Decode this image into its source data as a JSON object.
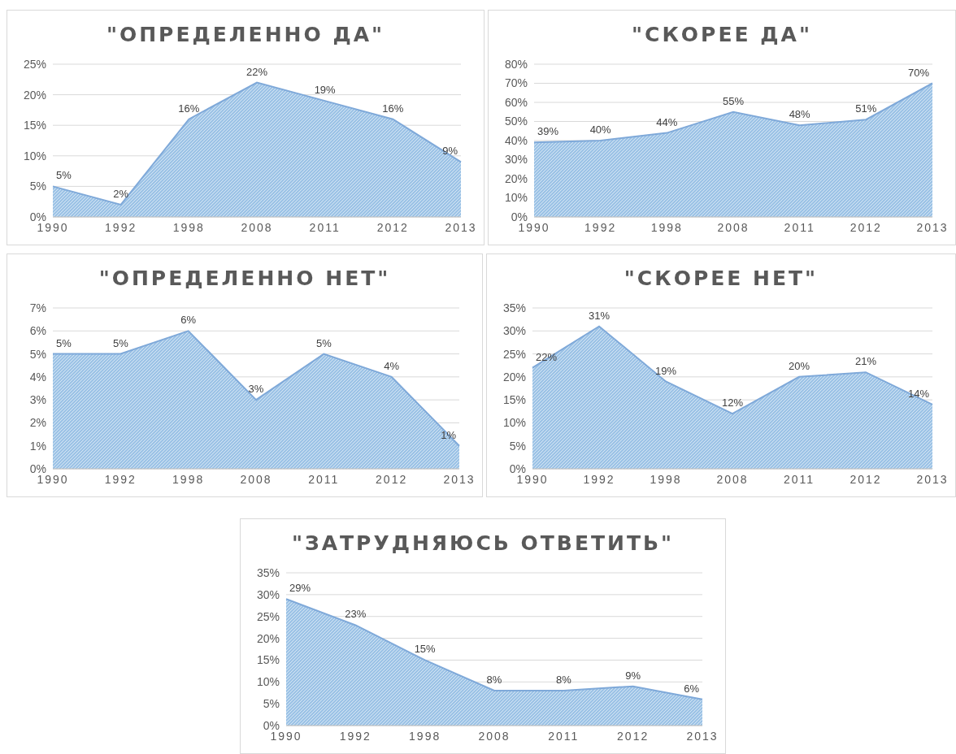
{
  "chart_data": [
    {
      "type": "area",
      "title": "\"ОПРЕДЕЛЕННО ДА\"",
      "categories": [
        "1990",
        "1992",
        "1998",
        "2008",
        "2011",
        "2012",
        "2013"
      ],
      "values": [
        5,
        2,
        16,
        22,
        19,
        16,
        9
      ],
      "value_labels": [
        "5%",
        "2%",
        "16%",
        "22%",
        "19%",
        "16%",
        "9%"
      ],
      "color": "#9dc3e6",
      "ylim": [
        0,
        25
      ],
      "yticks": [
        {
          "value": 0,
          "label": "0%"
        },
        {
          "value": 5,
          "label": "5%"
        },
        {
          "value": 10,
          "label": "10%"
        },
        {
          "value": 15,
          "label": "15%"
        },
        {
          "value": 20,
          "label": "20%"
        },
        {
          "value": 25,
          "label": "25%"
        }
      ],
      "grid": "y",
      "legend": false
    },
    {
      "type": "area",
      "title": "\"СКОРЕЕ ДА\"",
      "categories": [
        "1990",
        "1992",
        "1998",
        "2008",
        "2011",
        "2012",
        "2013"
      ],
      "values": [
        39,
        40,
        44,
        55,
        48,
        51,
        70
      ],
      "value_labels": [
        "39%",
        "40%",
        "44%",
        "55%",
        "48%",
        "51%",
        "70%"
      ],
      "color": "#9dc3e6",
      "ylim": [
        0,
        80
      ],
      "yticks": [
        {
          "value": 0,
          "label": "0%"
        },
        {
          "value": 10,
          "label": "10%"
        },
        {
          "value": 20,
          "label": "20%"
        },
        {
          "value": 30,
          "label": "30%"
        },
        {
          "value": 40,
          "label": "40%"
        },
        {
          "value": 50,
          "label": "50%"
        },
        {
          "value": 60,
          "label": "60%"
        },
        {
          "value": 70,
          "label": "70%"
        },
        {
          "value": 80,
          "label": "80%"
        }
      ],
      "grid": "y",
      "legend": false
    },
    {
      "type": "area",
      "title": "\"ОПРЕДЕЛЕННО НЕТ\"",
      "categories": [
        "1990",
        "1992",
        "1998",
        "2008",
        "2011",
        "2012",
        "2013"
      ],
      "values": [
        5,
        5,
        6,
        3,
        5,
        4,
        1
      ],
      "value_labels": [
        "5%",
        "5%",
        "6%",
        "3%",
        "5%",
        "4%",
        "1%"
      ],
      "color": "#9dc3e6",
      "ylim": [
        0,
        7
      ],
      "yticks": [
        {
          "value": 0,
          "label": "0%"
        },
        {
          "value": 1,
          "label": "1%"
        },
        {
          "value": 2,
          "label": "2%"
        },
        {
          "value": 3,
          "label": "3%"
        },
        {
          "value": 4,
          "label": "4%"
        },
        {
          "value": 5,
          "label": "5%"
        },
        {
          "value": 6,
          "label": "6%"
        },
        {
          "value": 7,
          "label": "7%"
        }
      ],
      "grid": "y",
      "legend": false
    },
    {
      "type": "area",
      "title": "\"СКОРЕЕ НЕТ\"",
      "categories": [
        "1990",
        "1992",
        "1998",
        "2008",
        "2011",
        "2012",
        "2013"
      ],
      "values": [
        22,
        31,
        19,
        12,
        20,
        21,
        14
      ],
      "value_labels": [
        "22%",
        "31%",
        "19%",
        "12%",
        "20%",
        "21%",
        "14%"
      ],
      "color": "#9dc3e6",
      "ylim": [
        0,
        35
      ],
      "yticks": [
        {
          "value": 0,
          "label": "0%"
        },
        {
          "value": 5,
          "label": "5%"
        },
        {
          "value": 10,
          "label": "10%"
        },
        {
          "value": 15,
          "label": "15%"
        },
        {
          "value": 20,
          "label": "20%"
        },
        {
          "value": 25,
          "label": "25%"
        },
        {
          "value": 30,
          "label": "30%"
        },
        {
          "value": 35,
          "label": "35%"
        }
      ],
      "grid": "y",
      "legend": false
    },
    {
      "type": "area",
      "title": "\"ЗАТРУДНЯЮСЬ ОТВЕТИТЬ\"",
      "categories": [
        "1990",
        "1992",
        "1998",
        "2008",
        "2011",
        "2012",
        "2013"
      ],
      "values": [
        29,
        23,
        15,
        8,
        8,
        9,
        6
      ],
      "value_labels": [
        "29%",
        "23%",
        "15%",
        "8%",
        "8%",
        "9%",
        "6%"
      ],
      "color": "#9dc3e6",
      "ylim": [
        0,
        35
      ],
      "yticks": [
        {
          "value": 0,
          "label": "0%"
        },
        {
          "value": 5,
          "label": "5%"
        },
        {
          "value": 10,
          "label": "10%"
        },
        {
          "value": 15,
          "label": "15%"
        },
        {
          "value": 20,
          "label": "20%"
        },
        {
          "value": 25,
          "label": "25%"
        },
        {
          "value": 30,
          "label": "30%"
        },
        {
          "value": 35,
          "label": "35%"
        }
      ],
      "grid": "y",
      "legend": false
    }
  ]
}
